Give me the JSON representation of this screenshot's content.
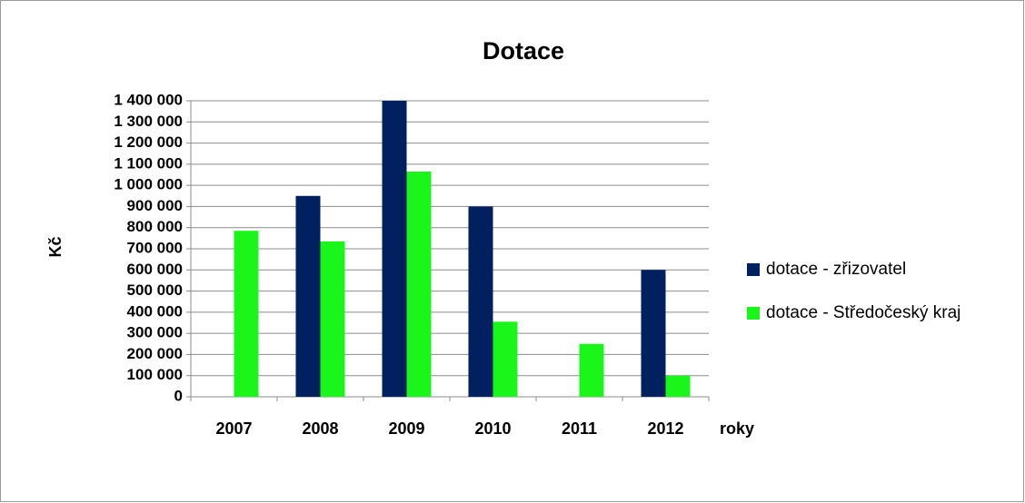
{
  "chart_data": {
    "type": "bar",
    "title": "Dotace",
    "y_label": "Kč",
    "x_label": "roky",
    "categories": [
      "2007",
      "2008",
      "2009",
      "2010",
      "2011",
      "2012"
    ],
    "series": [
      {
        "name": "dotace - zřizovatel",
        "color": "#002060",
        "values": [
          0,
          950000,
          1400000,
          900000,
          0,
          600000
        ]
      },
      {
        "name": "dotace - Středočeský kraj",
        "color": "#1af51a",
        "values": [
          785000,
          735000,
          1065000,
          355000,
          250000,
          100000
        ]
      }
    ],
    "ylim": [
      0,
      1400000
    ],
    "yticks": [
      0,
      {
        "value": 100000,
        "label": "100 000"
      },
      {
        "value": 200000,
        "label": "200 000"
      },
      {
        "value": 300000,
        "label": "300 000"
      },
      {
        "value": 400000,
        "label": "400 000"
      },
      {
        "value": 500000,
        "label": "500 000"
      },
      {
        "value": 600000,
        "label": "600 000"
      },
      {
        "value": 700000,
        "label": "700 000"
      },
      {
        "value": 800000,
        "label": "800 000"
      },
      {
        "value": 900000,
        "label": "900 000"
      },
      {
        "value": 1000000,
        "label": "1 000 000"
      },
      {
        "value": 1100000,
        "label": "1 100 000"
      },
      {
        "value": 1200000,
        "label": "1 200 000"
      },
      {
        "value": 1300000,
        "label": "1 300 000"
      },
      {
        "value": 1400000,
        "label": "1 400 000"
      }
    ],
    "grid": true,
    "legend": "right"
  }
}
